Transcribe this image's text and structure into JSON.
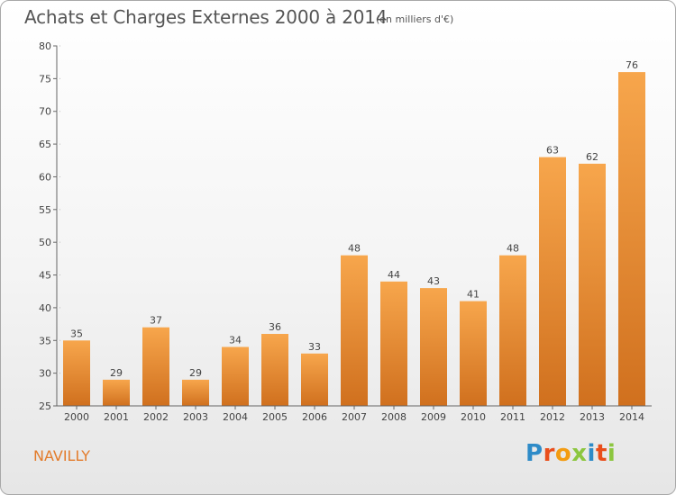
{
  "header": {
    "title": "Achats et Charges Externes 2000 à 2014",
    "subtitle": "(en milliers d'€)"
  },
  "footer": {
    "commune": "NAVILLY",
    "logo_text": "Proxiti",
    "logo_colors": [
      "#2e8bc8",
      "#e94e1b",
      "#f39c12",
      "#8cc63f",
      "#2e8bc8",
      "#e94e1b",
      "#8cc63f"
    ]
  },
  "colors": {
    "bar_light": "#f7a64c",
    "bar_dark": "#d0701e",
    "axis": "#666666",
    "grid": "#bbbbbb"
  },
  "chart_data": {
    "type": "bar",
    "title": "Achats et Charges Externes 2000 à 2014",
    "subtitle": "(en milliers d'€)",
    "categories": [
      "2000",
      "2001",
      "2002",
      "2003",
      "2004",
      "2005",
      "2006",
      "2007",
      "2008",
      "2009",
      "2010",
      "2011",
      "2012",
      "2013",
      "2014"
    ],
    "values": [
      35,
      29,
      37,
      29,
      34,
      36,
      33,
      48,
      44,
      43,
      41,
      48,
      63,
      62,
      76
    ],
    "ylim": [
      25,
      80
    ],
    "yticks": [
      25,
      30,
      35,
      40,
      45,
      50,
      55,
      60,
      65,
      70,
      75,
      80
    ],
    "grid": false,
    "data_labels": true
  }
}
